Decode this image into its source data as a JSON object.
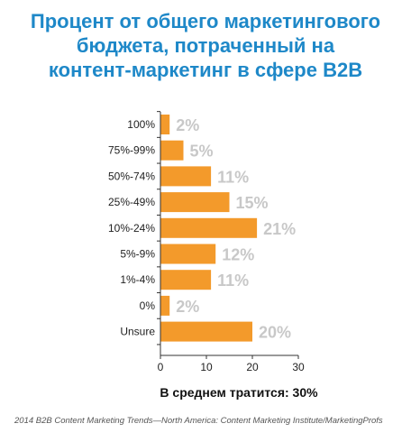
{
  "title_lines": [
    "Процент  от общего  маркетингового",
    "бюджета, потраченный на",
    "контент-маркетинг в сфере B2B"
  ],
  "chart_data": {
    "type": "bar",
    "orientation": "horizontal",
    "categories": [
      "100%",
      "75%-99%",
      "50%-74%",
      "25%-49%",
      "10%-24%",
      "5%-9%",
      "1%-4%",
      "0%",
      "Unsure"
    ],
    "values": [
      2,
      5,
      11,
      15,
      21,
      12,
      11,
      2,
      20
    ],
    "value_labels": [
      "2%",
      "5%",
      "11%",
      "15%",
      "21%",
      "12%",
      "11%",
      "2%",
      "20%"
    ],
    "xlim": [
      0,
      30
    ],
    "xticks": [
      "0",
      "10",
      "20",
      "30"
    ],
    "bar_color": "#f39a2b",
    "label_color": "#c8c8c8",
    "grid": false
  },
  "average_text": "В среднем тратится: 30%",
  "source_text": "2014 B2B Content Marketing Trends—North America: Content Marketing Institute/MarketingProfs"
}
